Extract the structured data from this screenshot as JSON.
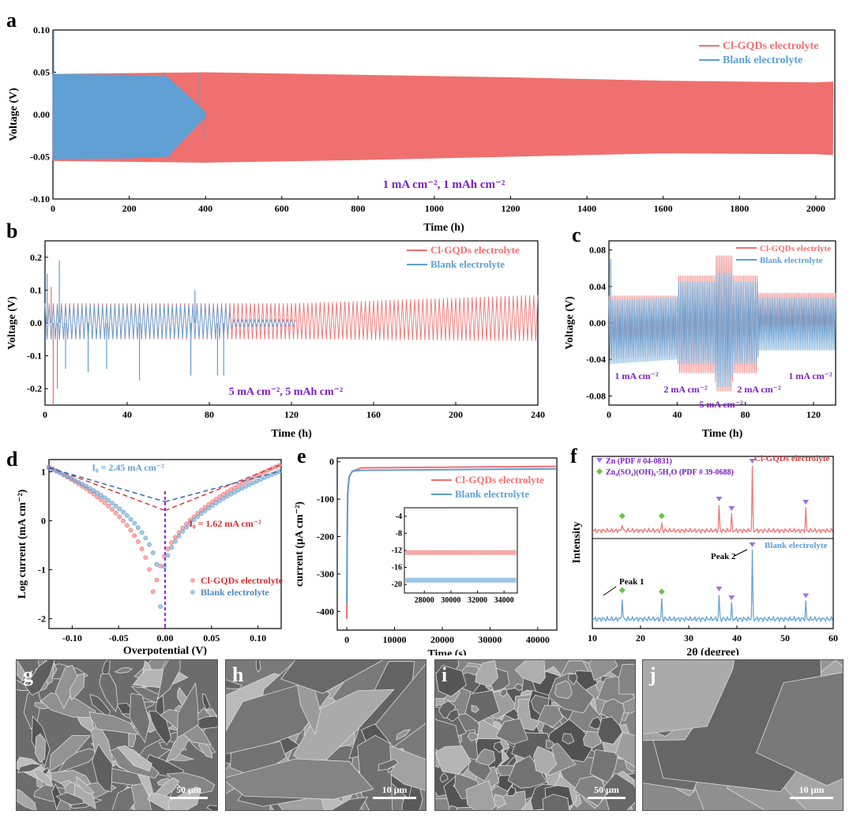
{
  "colors": {
    "red": "#f07070",
    "blue": "#5f9fd3",
    "purple": "#7b1fc2",
    "axis": "#000000"
  },
  "chart_data": [
    {
      "panel": "a",
      "type": "line",
      "xlabel": "Time (h)",
      "ylabel": "Voltage (V)",
      "xlim": [
        0,
        2050
      ],
      "ylim": [
        -0.1,
        0.1
      ],
      "xticks": [
        "0",
        "200",
        "400",
        "600",
        "800",
        "1000",
        "1200",
        "1400",
        "1600",
        "1800",
        "2000"
      ],
      "xtick_vals": [
        0,
        200,
        400,
        600,
        800,
        1000,
        1200,
        1400,
        1600,
        1800,
        2000
      ],
      "yticks": [
        "-0.10",
        "-0.05",
        "0.00",
        "0.05",
        "0.10"
      ],
      "ytick_vals": [
        -0.1,
        -0.05,
        0.0,
        0.05,
        0.1
      ],
      "annotation": "1 mA cm⁻², 1 mAh cm⁻²",
      "series": [
        {
          "name": "Cl-GQDs electrolyte",
          "color": "red",
          "envelope": [
            [
              0,
              0.048,
              -0.055
            ],
            [
              400,
              0.05,
              -0.057
            ],
            [
              800,
              0.047,
              -0.054
            ],
            [
              1200,
              0.044,
              -0.05
            ],
            [
              1600,
              0.04,
              -0.046
            ],
            [
              2000,
              0.038,
              -0.047
            ],
            [
              2045,
              0.039,
              -0.048
            ]
          ]
        },
        {
          "name": "Blank electrolyte",
          "color": "blue",
          "envelope": [
            [
              0,
              0.048,
              -0.053
            ],
            [
              200,
              0.047,
              -0.052
            ],
            [
              300,
              0.045,
              -0.05
            ],
            [
              400,
              0.003,
              -0.003
            ]
          ],
          "spikes": [
            [
              2,
              0.1
            ],
            [
              210,
              0.04
            ],
            [
              290,
              0.05
            ],
            [
              310,
              -0.055
            ],
            [
              380,
              0.05
            ],
            [
              395,
              -0.03
            ]
          ]
        }
      ]
    },
    {
      "panel": "b",
      "type": "line",
      "xlabel": "Time (h)",
      "ylabel": "Voltage (V)",
      "xlim": [
        0,
        240
      ],
      "ylim": [
        -0.25,
        0.25
      ],
      "xticks": [
        "0",
        "40",
        "80",
        "120",
        "160",
        "200",
        "240"
      ],
      "xtick_vals": [
        0,
        40,
        80,
        120,
        160,
        200,
        240
      ],
      "yticks": [
        "-0.2",
        "-0.1",
        "0.0",
        "0.1",
        "0.2"
      ],
      "ytick_vals": [
        -0.2,
        -0.1,
        0.0,
        0.1,
        0.2
      ],
      "annotation": "5 mA cm⁻², 5 mAh cm⁻²",
      "series": [
        {
          "name": "Cl-GQDs electrolyte",
          "color": "red",
          "envelope": [
            [
              0,
              0.06,
              -0.05
            ],
            [
              120,
              0.06,
              -0.05
            ],
            [
              240,
              0.085,
              -0.055
            ]
          ],
          "spikes": [
            [
              3,
              0.11
            ],
            [
              4,
              -0.25
            ],
            [
              6,
              -0.2
            ]
          ]
        },
        {
          "name": "Blank electrolyte",
          "color": "blue",
          "envelope": [
            [
              0,
              0.055,
              -0.05
            ],
            [
              88,
              0.055,
              -0.045
            ],
            [
              92,
              0.01,
              -0.01
            ],
            [
              122,
              0.01,
              -0.01
            ]
          ],
          "spikes": [
            [
              1,
              0.15
            ],
            [
              7,
              0.19
            ],
            [
              10,
              -0.14
            ],
            [
              21,
              -0.15
            ],
            [
              30,
              -0.14
            ],
            [
              46,
              -0.175
            ],
            [
              71,
              -0.16
            ],
            [
              73,
              0.1
            ],
            [
              84,
              -0.16
            ],
            [
              87,
              -0.16
            ]
          ]
        }
      ]
    },
    {
      "panel": "c",
      "type": "line",
      "xlabel": "Time (h)",
      "ylabel": "Voltage (V)",
      "xlim": [
        0,
        133
      ],
      "ylim": [
        -0.09,
        0.09
      ],
      "xticks": [
        "0",
        "40",
        "80",
        "120"
      ],
      "xtick_vals": [
        0,
        40,
        80,
        120
      ],
      "yticks": [
        "-0.08",
        "-0.04",
        "0.00",
        "0.04",
        "0.08"
      ],
      "ytick_vals": [
        -0.08,
        -0.04,
        0.0,
        0.04,
        0.08
      ],
      "annotations": [
        "1 mA cm⁻²",
        "2 mA cm⁻²",
        "5 mA cm⁻²",
        "2 mA cm⁻²",
        "1 mA cm⁻²"
      ],
      "series": [
        {
          "name": "Cl-GQDs electrlyte",
          "color": "red",
          "envelope": [
            [
              0,
              0.03,
              -0.04
            ],
            [
              40,
              0.03,
              -0.035
            ],
            [
              41,
              0.052,
              -0.055
            ],
            [
              62,
              0.052,
              -0.055
            ],
            [
              63,
              0.074,
              -0.075
            ],
            [
              72,
              0.074,
              -0.075
            ],
            [
              73,
              0.052,
              -0.055
            ],
            [
              87,
              0.052,
              -0.055
            ],
            [
              88,
              0.033,
              -0.02
            ],
            [
              133,
              0.033,
              -0.02
            ]
          ]
        },
        {
          "name": "Blank electrolyte",
          "color": "blue",
          "envelope": [
            [
              0,
              0.025,
              -0.045
            ],
            [
              40,
              0.028,
              -0.04
            ],
            [
              41,
              0.045,
              -0.045
            ],
            [
              62,
              0.045,
              -0.045
            ],
            [
              63,
              0.055,
              -0.07
            ],
            [
              72,
              0.055,
              -0.07
            ],
            [
              73,
              0.045,
              -0.045
            ],
            [
              87,
              0.045,
              -0.045
            ],
            [
              88,
              0.028,
              -0.03
            ],
            [
              133,
              0.028,
              -0.03
            ]
          ],
          "spikes": [
            [
              1,
              0.07
            ]
          ]
        }
      ]
    },
    {
      "panel": "d",
      "type": "scatter",
      "xlabel": "Overpotential (V)",
      "ylabel": "Log current (mA cm⁻²)",
      "xlim": [
        -0.125,
        0.125
      ],
      "ylim": [
        -2.2,
        1.25
      ],
      "xticks": [
        "-0.10",
        "-0.05",
        "0.00",
        "0.05",
        "0.10"
      ],
      "xtick_vals": [
        -0.1,
        -0.05,
        0.0,
        0.05,
        0.1
      ],
      "yticks": [
        "-2",
        "-1",
        "0",
        "1"
      ],
      "ytick_vals": [
        -2,
        -1,
        0,
        1
      ],
      "annotations": [
        "I₀ = 2.45 mA cm⁻²",
        "I₀ = 1.62 mA cm⁻²"
      ],
      "series": [
        {
          "name": "Cl-GQDs electrolyte",
          "color": "red",
          "minimum": [
            -0.012,
            -2.05
          ],
          "i0_log": 0.21,
          "ends": [
            [
              -0.125,
              1.1
            ],
            [
              0.125,
              1.15
            ]
          ]
        },
        {
          "name": "Blank electrolyte",
          "color": "blue",
          "minimum": [
            -0.005,
            -1.75
          ],
          "i0_log": 0.39,
          "ends": [
            [
              -0.125,
              1.08
            ],
            [
              0.125,
              1.02
            ]
          ]
        }
      ]
    },
    {
      "panel": "e",
      "type": "line",
      "xlabel": "Time (s)",
      "ylabel": "current (μA cm⁻²)",
      "xlim": [
        -2000,
        44000
      ],
      "ylim": [
        -450,
        10
      ],
      "xticks": [
        "0",
        "10000",
        "20000",
        "30000",
        "40000"
      ],
      "xtick_vals": [
        0,
        10000,
        20000,
        30000,
        40000
      ],
      "yticks": [
        "0",
        "-100",
        "-200",
        "-300",
        "-400"
      ],
      "ytick_vals": [
        0,
        -100,
        -200,
        -300,
        -400
      ],
      "series": [
        {
          "name": "Cl-GQDs electrolyte",
          "color": "red",
          "start": -420,
          "plateau": -12.5
        },
        {
          "name": "Blank electrolyte",
          "color": "blue",
          "start": -380,
          "plateau": -19
        }
      ],
      "inset": {
        "xlim": [
          26500,
          35000
        ],
        "ylim": [
          -22,
          -2
        ],
        "xticks": [
          "28000",
          "30000",
          "32000",
          "34000"
        ],
        "xtick_vals": [
          28000,
          30000,
          32000,
          34000
        ],
        "yticks": [
          "-4",
          "-8",
          "-12",
          "-16",
          "-20"
        ],
        "ytick_vals": [
          -4,
          -8,
          -12,
          -16,
          -20
        ],
        "red_level": -12.5,
        "blue_level": -19
      }
    },
    {
      "panel": "f",
      "type": "line",
      "xlabel": "2θ (degree)",
      "ylabel": "Intensity",
      "xlim": [
        10,
        60
      ],
      "xticks": [
        "10",
        "20",
        "30",
        "40",
        "50",
        "60"
      ],
      "xtick_vals": [
        10,
        20,
        30,
        40,
        50,
        60
      ],
      "legend": [
        "Zn (PDF # 04-0831)",
        "Zn₄(SO₄)(OH)₆·5H₂O (PDF # 39-0688)"
      ],
      "annotations": [
        "Peak 1",
        "Peak 2"
      ],
      "series": [
        {
          "name": "Cl-GQDs electrolyte",
          "color": "red",
          "peaks": [
            [
              16.2,
              0.12
            ],
            [
              24.4,
              0.12
            ],
            [
              36.3,
              0.4
            ],
            [
              38.9,
              0.25
            ],
            [
              43.2,
              1.0
            ],
            [
              54.3,
              0.35
            ]
          ]
        },
        {
          "name": "Blank electrolyte",
          "color": "blue",
          "peaks": [
            [
              16.2,
              0.32
            ],
            [
              24.4,
              0.3
            ],
            [
              36.3,
              0.35
            ],
            [
              38.9,
              0.22
            ],
            [
              43.2,
              1.0
            ],
            [
              54.3,
              0.25
            ]
          ]
        }
      ],
      "zn_peaks": [
        36.3,
        38.9,
        43.2,
        54.3
      ],
      "hydroxide_peaks": [
        16.2,
        24.4
      ]
    }
  ],
  "panels": {
    "a": "a",
    "b": "b",
    "c": "c",
    "d": "d",
    "e": "e",
    "f": "f",
    "g": "g",
    "h": "h",
    "i": "i",
    "j": "j"
  },
  "legends": {
    "a": [
      "Cl-GQDs electrolyte",
      "Blank electrolyte"
    ],
    "b": [
      "Cl-GQDs electrolyte",
      "Blank electrolyte"
    ],
    "c": [
      "Cl-GQDs electrlyte",
      "Blank electrolyte"
    ],
    "d": [
      "Cl-GQDs electrolyte",
      "Blank electrolyte"
    ],
    "e": [
      "Cl-GQDs electrolyte",
      "Blank electrolyte"
    ]
  },
  "sem": [
    {
      "label": "g",
      "scale": "50 μm"
    },
    {
      "label": "h",
      "scale": "10 μm"
    },
    {
      "label": "i",
      "scale": "50 μm"
    },
    {
      "label": "j",
      "scale": "10 μm"
    }
  ]
}
